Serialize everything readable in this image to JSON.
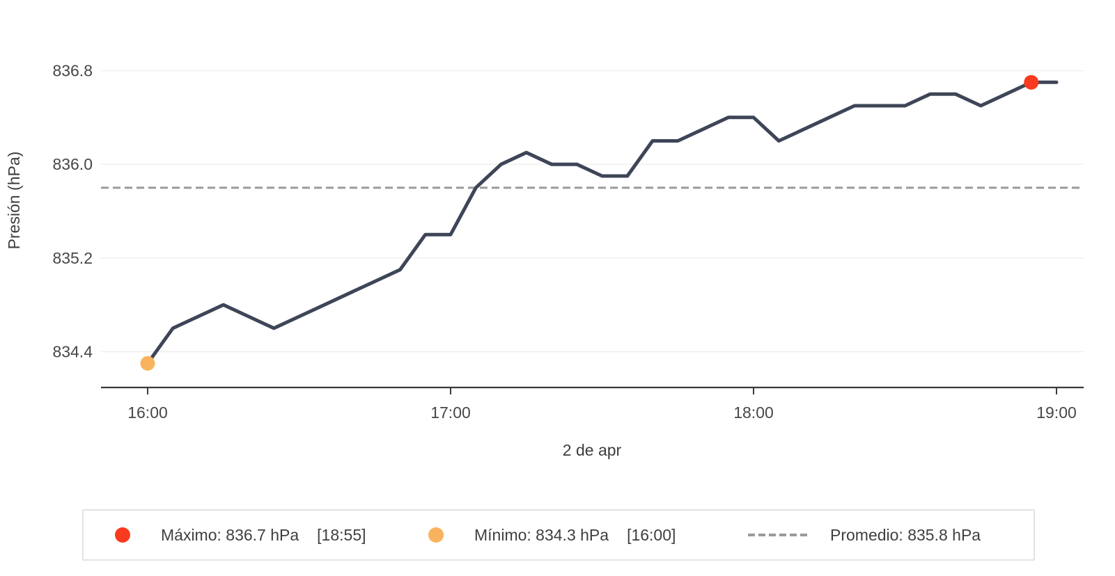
{
  "chart_data": {
    "type": "line",
    "title": "",
    "ylabel": "Presión (hPa)",
    "xlabel": "2 de apr",
    "x_tick_labels": [
      "16:00",
      "17:00",
      "18:00",
      "19:00"
    ],
    "y_tick_labels": [
      "836.8",
      "836.0",
      "835.2",
      "834.4"
    ],
    "y_tick_values": [
      836.8,
      836.0,
      835.2,
      834.4
    ],
    "ylim": [
      834.1,
      837.0
    ],
    "grid": true,
    "legend_position": "bottom",
    "series": [
      {
        "name": "Presión",
        "color": "#3e4557",
        "x": [
          "16:00",
          "16:05",
          "16:10",
          "16:15",
          "16:20",
          "16:25",
          "16:30",
          "16:35",
          "16:40",
          "16:45",
          "16:50",
          "16:55",
          "17:00",
          "17:05",
          "17:10",
          "17:15",
          "17:20",
          "17:25",
          "17:30",
          "17:35",
          "17:40",
          "17:45",
          "17:50",
          "17:55",
          "18:00",
          "18:05",
          "18:10",
          "18:15",
          "18:20",
          "18:25",
          "18:30",
          "18:35",
          "18:40",
          "18:45",
          "18:50",
          "18:55",
          "19:00"
        ],
        "values": [
          834.3,
          834.6,
          834.7,
          834.8,
          834.7,
          834.6,
          834.7,
          834.8,
          834.9,
          835.0,
          835.1,
          835.4,
          835.4,
          835.8,
          836.0,
          836.1,
          836.0,
          836.0,
          835.9,
          835.9,
          836.2,
          836.2,
          836.3,
          836.4,
          836.4,
          836.2,
          836.3,
          836.4,
          836.5,
          836.5,
          836.5,
          836.6,
          836.6,
          836.5,
          836.6,
          836.7,
          836.7
        ]
      }
    ],
    "average_line": {
      "value": 835.8,
      "color": "#9a9a9a",
      "style": "dashed"
    },
    "markers": [
      {
        "name": "max",
        "time": "18:55",
        "value": 836.7,
        "color": "#f93a1e"
      },
      {
        "name": "min",
        "time": "16:00",
        "value": 834.3,
        "color": "#f9b35e"
      }
    ]
  },
  "legend": {
    "items": [
      {
        "id": "max",
        "swatch": "dot",
        "color": "#f93a1e",
        "label": "Máximo: 836.7 hPa",
        "time": "[18:55]"
      },
      {
        "id": "min",
        "swatch": "dot",
        "color": "#f9b35e",
        "label": "Mínimo: 834.3 hPa",
        "time": "[16:00]"
      },
      {
        "id": "avg",
        "swatch": "dash",
        "color": "#9a9a9a",
        "label": "Promedio: 835.8 hPa",
        "time": ""
      }
    ]
  },
  "colors": {
    "line": "#3e4557",
    "max_dot": "#f93a1e",
    "min_dot": "#f9b35e",
    "average": "#9a9a9a",
    "gridline": "#f0f0f0",
    "axis": "#3a3a3a"
  }
}
